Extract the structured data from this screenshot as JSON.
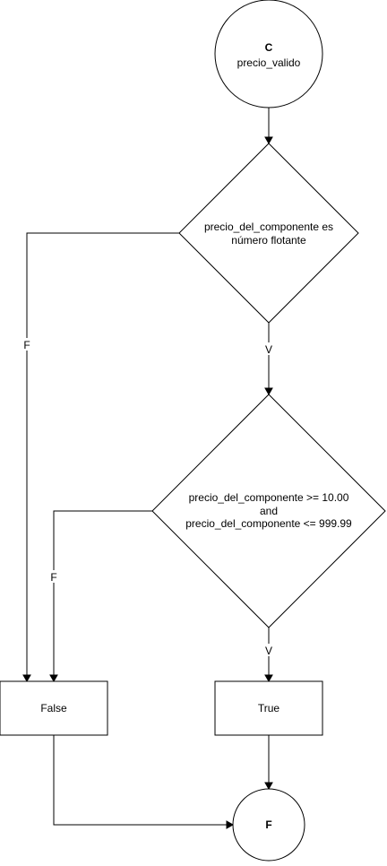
{
  "start": {
    "letter": "C",
    "name": "precio_valido"
  },
  "decision1": {
    "line1": "precio_del_componente es",
    "line2": "número flotante",
    "true_label": "V",
    "false_label": "F"
  },
  "decision2": {
    "line1": "precio_del_componente >= 10.00",
    "line2": "and",
    "line3": "precio_del_componente <= 999.99",
    "true_label": "V",
    "false_label": "F"
  },
  "result_false": {
    "label": "False"
  },
  "result_true": {
    "label": "True"
  },
  "end": {
    "letter": "F"
  }
}
